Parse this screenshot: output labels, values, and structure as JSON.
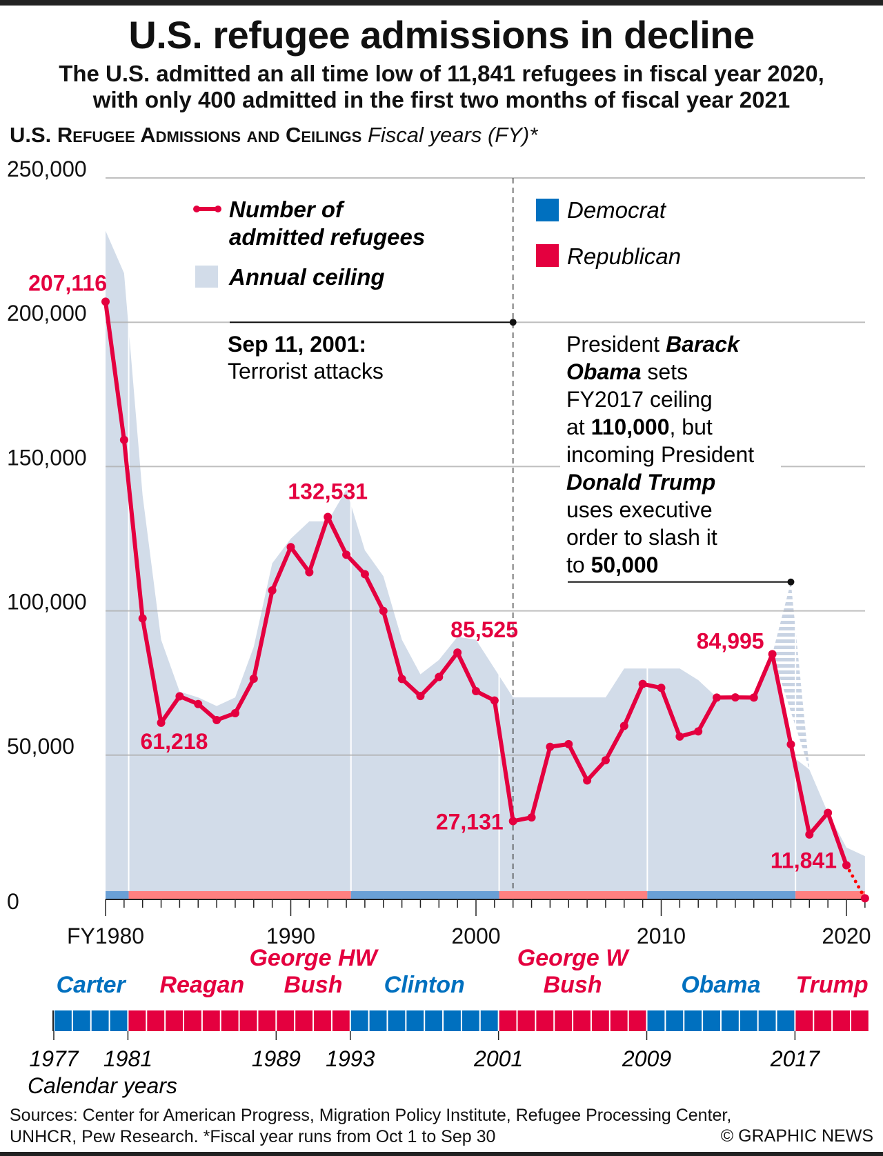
{
  "title": "U.S. refugee admissions in decline",
  "subtitle": [
    "The U.S. admitted an all time low of 11,841 refugees in fiscal year 2020,",
    "with only 400 admitted in the first two months of fiscal year 2021"
  ],
  "section_heading": "U.S. Refugee Admissions and Ceilings",
  "section_subheading": "Fiscal years (FY)*",
  "colors": {
    "admitted": "#e4003f",
    "ceiling": "#d2dce9",
    "democrat": "#0070bf",
    "republican": "#e4003f",
    "democrat_light": "#6aa0d6",
    "republican_light": "#ff8080"
  },
  "chart_data": {
    "type": "line",
    "title": "U.S. Refugee Admissions and Ceilings",
    "xlabel": "Fiscal years",
    "ylabel": "",
    "ylim": [
      0,
      250000
    ],
    "xlim": [
      1980,
      2021
    ],
    "y_ticks": [
      0,
      50000,
      100000,
      150000,
      200000,
      250000
    ],
    "y_tick_labels": [
      "0",
      "50,000",
      "100,000",
      "150,000",
      "200,000",
      "250,000"
    ],
    "x_ticks": [
      1980,
      1990,
      2000,
      2010,
      2020
    ],
    "x_tick_labels": [
      "FY1980",
      "1990",
      "2000",
      "2010",
      "2020"
    ],
    "grid": true,
    "legend": {
      "admitted": "Number of admitted refugees",
      "ceiling": "Annual ceiling",
      "democrat": "Democrat",
      "republican": "Republican",
      "placement": "top"
    },
    "x": [
      1980,
      1981,
      1982,
      1983,
      1984,
      1985,
      1986,
      1987,
      1988,
      1989,
      1990,
      1991,
      1992,
      1993,
      1994,
      1995,
      1996,
      1997,
      1998,
      1999,
      2000,
      2001,
      2002,
      2003,
      2004,
      2005,
      2006,
      2007,
      2008,
      2009,
      2010,
      2011,
      2012,
      2013,
      2014,
      2015,
      2016,
      2017,
      2018,
      2019,
      2020,
      2021
    ],
    "series": [
      {
        "name": "Number of admitted refugees",
        "type": "line",
        "values": [
          207116,
          159252,
          97355,
          61218,
          70393,
          67704,
          62146,
          64528,
          76483,
          107070,
          122066,
          113389,
          132531,
          119448,
          112682,
          99974,
          76403,
          70488,
          77080,
          85525,
          72165,
          68920,
          27131,
          28422,
          52873,
          53813,
          41223,
          48218,
          60107,
          74654,
          73311,
          56424,
          58238,
          69926,
          69987,
          69933,
          84995,
          53716,
          22491,
          30000,
          11841,
          400
        ],
        "partial_last_point": true
      },
      {
        "name": "Annual ceiling",
        "type": "area",
        "values": [
          231700,
          217000,
          140000,
          90000,
          72000,
          70000,
          67000,
          70000,
          87500,
          116500,
          125000,
          131000,
          131000,
          142000,
          121000,
          112000,
          90000,
          78000,
          83000,
          91000,
          90000,
          80000,
          70000,
          70000,
          70000,
          70000,
          70000,
          70000,
          80000,
          80000,
          80000,
          80000,
          76000,
          70000,
          70000,
          70000,
          85000,
          50000,
          45000,
          30000,
          18000,
          15000
        ]
      },
      {
        "name": "Obama FY2017 ceiling (slashed)",
        "type": "hatched-area",
        "x": [
          2016,
          2017,
          2018
        ],
        "values": [
          85000,
          110000,
          45000
        ]
      }
    ],
    "data_labels": [
      {
        "year": 1980,
        "text": "207,116"
      },
      {
        "year": 1983,
        "text": "61,218"
      },
      {
        "year": 1992,
        "text": "132,531"
      },
      {
        "year": 1999,
        "text": "85,525"
      },
      {
        "year": 2002,
        "text": "27,131"
      },
      {
        "year": 2016,
        "text": "84,995"
      },
      {
        "year": 2020,
        "text": "11,841"
      }
    ],
    "party_by_fiscal_year": [
      {
        "party": "democrat",
        "from": 1980,
        "to": 1981.25
      },
      {
        "party": "republican",
        "from": 1981.25,
        "to": 1993.25
      },
      {
        "party": "democrat",
        "from": 1993.25,
        "to": 2001.25
      },
      {
        "party": "republican",
        "from": 2001.25,
        "to": 2009.25
      },
      {
        "party": "democrat",
        "from": 2009.25,
        "to": 2017.25
      },
      {
        "party": "republican",
        "from": 2017.25,
        "to": 2021
      }
    ],
    "annotations": {
      "sep11": {
        "year": 2002,
        "value": 200000,
        "title": "Sep 11, 2001:",
        "text": "Terrorist attacks"
      },
      "obama": {
        "year": 2017,
        "value": 110000,
        "lines": [
          [
            {
              "t": "President ",
              "b": false
            },
            {
              "t": "Barack",
              "b": true,
              "i": true
            }
          ],
          [
            {
              "t": "Obama",
              "b": true,
              "i": true
            },
            {
              "t": " sets",
              "b": false
            }
          ],
          [
            {
              "t": "FY2017 ceiling",
              "b": false
            }
          ],
          [
            {
              "t": "at ",
              "b": false
            },
            {
              "t": "110,000",
              "b": true
            },
            {
              "t": ", but",
              "b": false
            }
          ],
          [
            {
              "t": "incoming President",
              "b": false
            }
          ],
          [
            {
              "t": "Donald Trump",
              "b": true,
              "i": true
            }
          ],
          [
            {
              "t": "uses executive",
              "b": false
            }
          ],
          [
            {
              "t": "order to slash it",
              "b": false
            }
          ],
          [
            {
              "t": "to ",
              "b": false
            },
            {
              "t": "50,000",
              "b": true
            }
          ]
        ]
      }
    }
  },
  "presidents": [
    {
      "name": [
        "Carter"
      ],
      "party": "democrat",
      "from": 1977,
      "to": 1981
    },
    {
      "name": [
        "Reagan"
      ],
      "party": "republican",
      "from": 1981,
      "to": 1989
    },
    {
      "name": [
        "George HW",
        "Bush"
      ],
      "party": "republican",
      "from": 1989,
      "to": 1993
    },
    {
      "name": [
        "Clinton"
      ],
      "party": "democrat",
      "from": 1993,
      "to": 2001
    },
    {
      "name": [
        "George W",
        "Bush"
      ],
      "party": "republican",
      "from": 2001,
      "to": 2009
    },
    {
      "name": [
        "Obama"
      ],
      "party": "democrat",
      "from": 2009,
      "to": 2017
    },
    {
      "name": [
        "Trump"
      ],
      "party": "republican",
      "from": 2017,
      "to": 2021
    }
  ],
  "calendar_year_labels": [
    "1977",
    "1981",
    "1989",
    "1993",
    "2001",
    "2009",
    "2017"
  ],
  "calendar_axis_label": "Calendar years",
  "sources": [
    "Sources: Center for American Progress, Migration Policy Institute, Refugee Processing Center,",
    "UNHCR, Pew Research. *Fiscal year runs from Oct 1 to Sep 30"
  ],
  "credit": "© GRAPHIC NEWS"
}
